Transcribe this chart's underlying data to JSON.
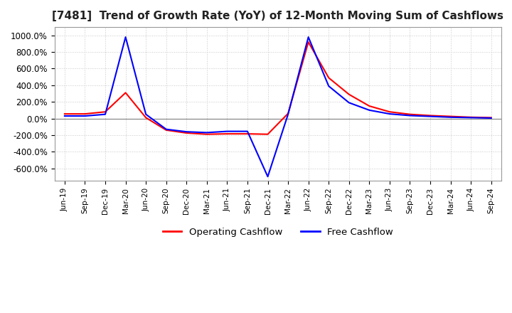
{
  "title": "[7481]  Trend of Growth Rate (YoY) of 12-Month Moving Sum of Cashflows",
  "title_fontsize": 11,
  "ylim": [
    -750,
    1100
  ],
  "yticks": [
    -600,
    -400,
    -200,
    0,
    200,
    400,
    600,
    800,
    1000
  ],
  "ytick_labels": [
    "-600.0%",
    "-400.0%",
    "-200.0%",
    "0.0%",
    "200.0%",
    "400.0%",
    "600.0%",
    "800.0%",
    "1000.0%"
  ],
  "background_color": "#ffffff",
  "grid_color": "#c8c8c8",
  "operating_color": "#ff0000",
  "free_color": "#0000ff",
  "legend_labels": [
    "Operating Cashflow",
    "Free Cashflow"
  ],
  "x_dates": [
    "Jun-19",
    "Sep-19",
    "Dec-19",
    "Mar-20",
    "Jun-20",
    "Sep-20",
    "Dec-20",
    "Mar-21",
    "Jun-21",
    "Sep-21",
    "Dec-21",
    "Mar-22",
    "Jun-22",
    "Sep-22",
    "Dec-22",
    "Mar-23",
    "Jun-23",
    "Sep-23",
    "Dec-23",
    "Mar-24",
    "Jun-24",
    "Sep-24"
  ],
  "operating_cashflow": [
    55,
    55,
    80,
    310,
    10,
    -140,
    -175,
    -190,
    -185,
    -185,
    -190,
    60,
    920,
    490,
    290,
    150,
    80,
    50,
    35,
    25,
    15,
    10
  ],
  "free_cashflow": [
    30,
    30,
    50,
    980,
    50,
    -130,
    -160,
    -170,
    -155,
    -155,
    -700,
    50,
    980,
    390,
    190,
    100,
    55,
    35,
    25,
    15,
    10,
    5
  ]
}
